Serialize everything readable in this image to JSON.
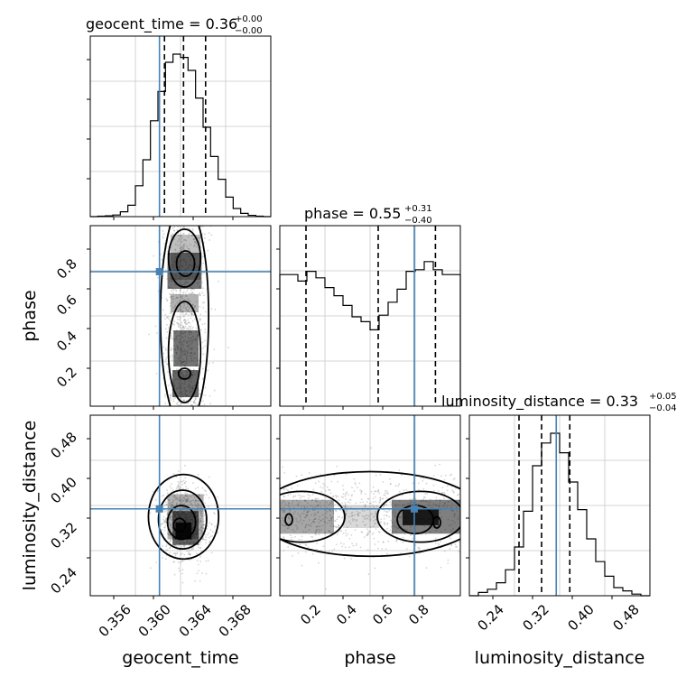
{
  "chart_data": {
    "type": "corner",
    "parameters": [
      "geocent_time",
      "phase",
      "luminosity_distance"
    ],
    "truth": {
      "geocent_time": 0.3604,
      "phase": 0.745,
      "luminosity_distance": 0.354
    },
    "ranges": {
      "geocent_time": [
        0.3535,
        0.3715
      ],
      "phase": [
        0.0,
        1.0
      ],
      "luminosity_distance": [
        0.2,
        0.52
      ]
    },
    "ticks": {
      "geocent_time": [
        "0.356",
        "0.360",
        "0.364",
        "0.368"
      ],
      "phase": [
        "0.2",
        "0.4",
        "0.6",
        "0.8"
      ],
      "luminosity_distance": [
        "0.24",
        "0.32",
        "0.40",
        "0.48"
      ]
    },
    "titles": {
      "geocent_time": {
        "text": "geocent_time = 0.36",
        "plus": "+0.00",
        "minus": "−0.00"
      },
      "phase": {
        "text": "phase = 0.55",
        "plus": "+0.31",
        "minus": "−0.40"
      },
      "luminosity_distance": {
        "text": "luminosity_distance = 0.33",
        "plus": "+0.05",
        "minus": "−0.04"
      }
    },
    "quantiles": {
      "geocent_time": [
        0.3609,
        0.3628,
        0.365
      ],
      "phase": [
        0.145,
        0.545,
        0.862
      ],
      "luminosity_distance": [
        0.288,
        0.328,
        0.378
      ]
    },
    "histograms": {
      "geocent_time": [
        0.0,
        0.003,
        0.005,
        0.01,
        0.03,
        0.07,
        0.19,
        0.35,
        0.59,
        0.77,
        0.95,
        1.0,
        0.98,
        0.9,
        0.73,
        0.55,
        0.37,
        0.23,
        0.12,
        0.05,
        0.02,
        0.008,
        0.003,
        0.0
      ],
      "phase": [
        0.81,
        0.81,
        0.77,
        0.83,
        0.79,
        0.73,
        0.68,
        0.62,
        0.55,
        0.52,
        0.47,
        0.56,
        0.64,
        0.72,
        0.83,
        0.84,
        0.89,
        0.84,
        0.81,
        0.81
      ],
      "luminosity_distance": [
        0.0,
        0.02,
        0.04,
        0.08,
        0.16,
        0.3,
        0.52,
        0.8,
        0.94,
        1.0,
        0.88,
        0.7,
        0.53,
        0.35,
        0.21,
        0.12,
        0.05,
        0.03,
        0.01,
        0.0
      ]
    },
    "grid": true,
    "colors": {
      "truth": "#4682b4",
      "hist": "#000000",
      "quantile": "#000000",
      "grid": "#c8c8c8",
      "points": "#888888"
    }
  }
}
